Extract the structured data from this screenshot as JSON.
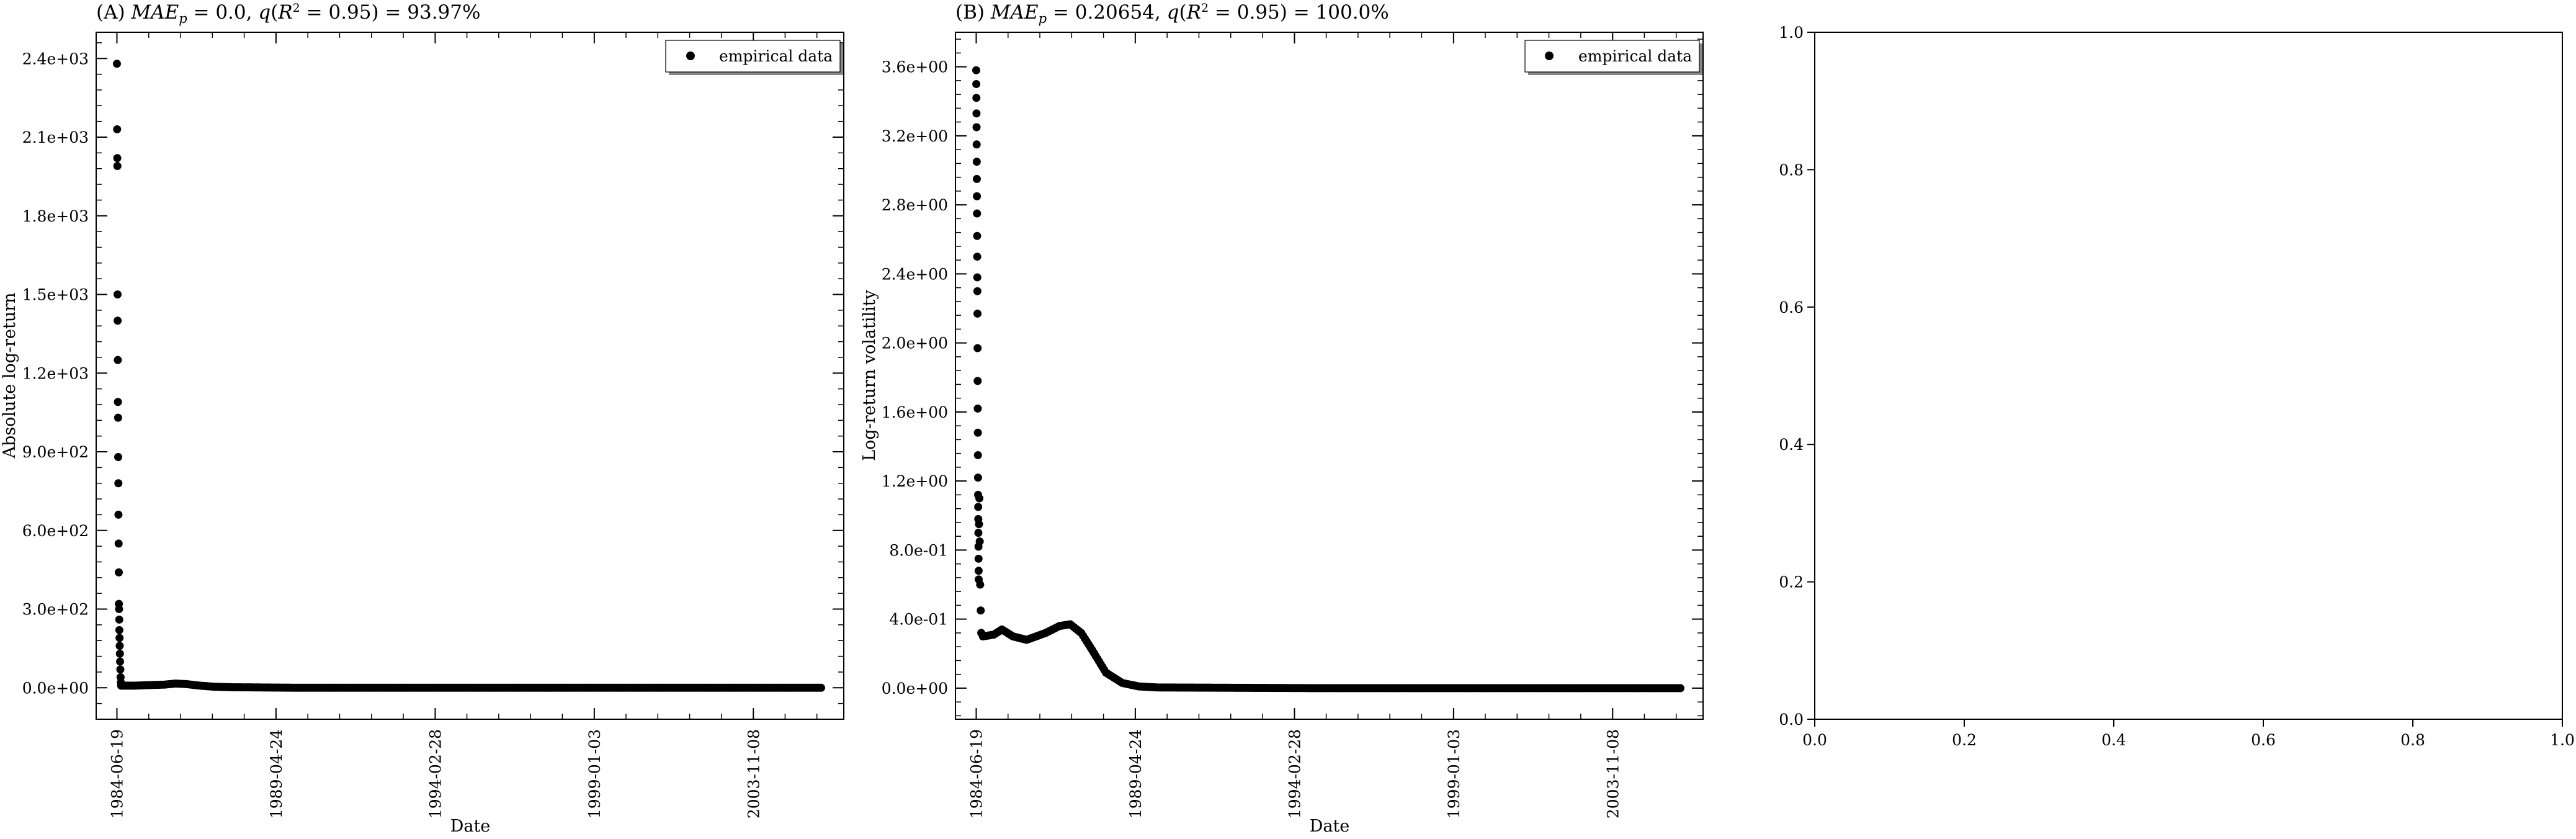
{
  "chart_data": [
    {
      "panel": "A",
      "type": "scatter",
      "title": "(A) MAE_p = 0.0, q(R^2 = 0.95) = 93.97%",
      "title_parts": {
        "prefix": "(A) ",
        "mae_label": "MAE",
        "mae_sub": "p",
        "mae_value": " = 0.0, ",
        "q_label": "q",
        "q_value_pre": "(",
        "r_label": "R",
        "r_sup": "2",
        "q_value_post": " = 0.95) = 93.97%"
      },
      "xlabel": "Date",
      "ylabel": "Absolute log-return",
      "x_tick_labels": [
        "1984-06-19",
        "1989-04-24",
        "1994-02-28",
        "1999-01-03",
        "2003-11-08"
      ],
      "y_tick_labels": [
        "0.0e+00",
        "3.0e+02",
        "6.0e+02",
        "9.0e+02",
        "1.2e+03",
        "1.5e+03",
        "1.8e+03",
        "2.1e+03",
        "2.4e+03"
      ],
      "y_ticks": [
        0,
        300,
        600,
        900,
        1200,
        1500,
        1800,
        2100,
        2400
      ],
      "ylim": [
        -120,
        2500
      ],
      "xlim": [
        "1983-11-01",
        "2006-08-10"
      ],
      "legend": {
        "label": "empirical data",
        "position": "top-right"
      },
      "series": [
        {
          "name": "empirical data",
          "early_points": [
            {
              "x": "1984-06-19",
              "y": 2380
            },
            {
              "x": "1984-06-21",
              "y": 2130
            },
            {
              "x": "1984-06-23",
              "y": 2020
            },
            {
              "x": "1984-06-24",
              "y": 1990
            },
            {
              "x": "1984-06-26",
              "y": 1500
            },
            {
              "x": "1984-06-27",
              "y": 1400
            },
            {
              "x": "1984-06-29",
              "y": 1250
            },
            {
              "x": "1984-06-30",
              "y": 1090
            },
            {
              "x": "1984-07-02",
              "y": 1030
            },
            {
              "x": "1984-07-03",
              "y": 880
            },
            {
              "x": "1984-07-05",
              "y": 780
            },
            {
              "x": "1984-07-06",
              "y": 660
            },
            {
              "x": "1984-07-08",
              "y": 550
            },
            {
              "x": "1984-07-10",
              "y": 440
            },
            {
              "x": "1984-07-11",
              "y": 320
            },
            {
              "x": "1984-07-13",
              "y": 300
            },
            {
              "x": "1984-07-15",
              "y": 260
            },
            {
              "x": "1984-07-16",
              "y": 220
            },
            {
              "x": "1984-07-18",
              "y": 190
            },
            {
              "x": "1984-07-20",
              "y": 160
            },
            {
              "x": "1984-07-22",
              "y": 130
            },
            {
              "x": "1984-07-24",
              "y": 100
            },
            {
              "x": "1984-07-27",
              "y": 70
            },
            {
              "x": "1984-07-30",
              "y": 40
            },
            {
              "x": "1984-08-02",
              "y": 20
            }
          ],
          "curve_points": [
            {
              "x": "1984-08-05",
              "y": 8
            },
            {
              "x": "1985-01-01",
              "y": 8
            },
            {
              "x": "1985-06-01",
              "y": 10
            },
            {
              "x": "1985-12-01",
              "y": 12
            },
            {
              "x": "1986-04-01",
              "y": 16
            },
            {
              "x": "1986-08-01",
              "y": 14
            },
            {
              "x": "1987-01-01",
              "y": 8
            },
            {
              "x": "1987-06-01",
              "y": 4
            },
            {
              "x": "1988-01-01",
              "y": 2
            },
            {
              "x": "1990-01-01",
              "y": 0
            },
            {
              "x": "1995-01-01",
              "y": 0
            },
            {
              "x": "2000-01-01",
              "y": 0
            },
            {
              "x": "2005-12-01",
              "y": 0
            }
          ]
        }
      ]
    },
    {
      "panel": "B",
      "type": "scatter",
      "title": "(B) MAE_p = 0.20654, q(R^2 = 0.95) = 100.0%",
      "title_parts": {
        "prefix": "(B) ",
        "mae_label": "MAE",
        "mae_sub": "p",
        "mae_value": " = 0.20654, ",
        "q_label": "q",
        "q_value_pre": "(",
        "r_label": "R",
        "r_sup": "2",
        "q_value_post": " = 0.95) = 100.0%"
      },
      "xlabel": "Date",
      "ylabel": "Log-return volatility",
      "x_tick_labels": [
        "1984-06-19",
        "1989-04-24",
        "1994-02-28",
        "1999-01-03",
        "2003-11-08"
      ],
      "y_tick_labels": [
        "0.0e+00",
        "4.0e-01",
        "8.0e-01",
        "1.2e+00",
        "1.6e+00",
        "2.0e+00",
        "2.4e+00",
        "2.8e+00",
        "3.2e+00",
        "3.6e+00"
      ],
      "y_ticks": [
        0,
        0.4,
        0.8,
        1.2,
        1.6,
        2.0,
        2.4,
        2.8,
        3.2,
        3.6
      ],
      "ylim": [
        -0.18,
        3.8
      ],
      "xlim": [
        "1983-11-01",
        "2006-08-10"
      ],
      "legend": {
        "label": "empirical data",
        "position": "top-right"
      },
      "series": [
        {
          "name": "empirical data",
          "early_points": [
            {
              "x": "1984-06-19",
              "y": 3.58
            },
            {
              "x": "1984-06-20",
              "y": 3.5
            },
            {
              "x": "1984-06-21",
              "y": 3.42
            },
            {
              "x": "1984-06-22",
              "y": 3.33
            },
            {
              "x": "1984-06-23",
              "y": 3.25
            },
            {
              "x": "1984-06-24",
              "y": 3.15
            },
            {
              "x": "1984-06-25",
              "y": 3.05
            },
            {
              "x": "1984-06-26",
              "y": 2.95
            },
            {
              "x": "1984-06-27",
              "y": 2.85
            },
            {
              "x": "1984-06-28",
              "y": 2.75
            },
            {
              "x": "1984-06-29",
              "y": 2.62
            },
            {
              "x": "1984-06-30",
              "y": 2.5
            },
            {
              "x": "1984-07-01",
              "y": 2.38
            },
            {
              "x": "1984-07-02",
              "y": 2.3
            },
            {
              "x": "1984-07-03",
              "y": 2.17
            },
            {
              "x": "1984-07-04",
              "y": 1.97
            },
            {
              "x": "1984-07-05",
              "y": 1.78
            },
            {
              "x": "1984-07-06",
              "y": 1.62
            },
            {
              "x": "1984-07-07",
              "y": 1.48
            },
            {
              "x": "1984-07-08",
              "y": 1.35
            },
            {
              "x": "1984-07-09",
              "y": 1.22
            },
            {
              "x": "1984-07-10",
              "y": 1.12
            },
            {
              "x": "1984-07-11",
              "y": 1.05
            },
            {
              "x": "1984-07-12",
              "y": 0.98
            },
            {
              "x": "1984-07-13",
              "y": 0.9
            },
            {
              "x": "1984-07-14",
              "y": 0.82
            },
            {
              "x": "1984-07-15",
              "y": 0.75
            },
            {
              "x": "1984-07-16",
              "y": 0.68
            },
            {
              "x": "1984-07-17",
              "y": 0.63
            },
            {
              "x": "1984-07-20",
              "y": 0.95
            },
            {
              "x": "1984-07-24",
              "y": 1.1
            },
            {
              "x": "1984-07-28",
              "y": 0.85
            },
            {
              "x": "1984-08-02",
              "y": 0.6
            },
            {
              "x": "1984-08-08",
              "y": 0.45
            },
            {
              "x": "1984-08-14",
              "y": 0.32
            }
          ],
          "curve_points": [
            {
              "x": "1984-09-01",
              "y": 0.3
            },
            {
              "x": "1985-01-01",
              "y": 0.31
            },
            {
              "x": "1985-04-01",
              "y": 0.34
            },
            {
              "x": "1985-08-01",
              "y": 0.3
            },
            {
              "x": "1986-01-01",
              "y": 0.28
            },
            {
              "x": "1986-08-01",
              "y": 0.32
            },
            {
              "x": "1987-01-01",
              "y": 0.36
            },
            {
              "x": "1987-05-01",
              "y": 0.37
            },
            {
              "x": "1987-09-01",
              "y": 0.32
            },
            {
              "x": "1988-01-01",
              "y": 0.22
            },
            {
              "x": "1988-06-01",
              "y": 0.09
            },
            {
              "x": "1988-12-01",
              "y": 0.03
            },
            {
              "x": "1989-06-01",
              "y": 0.01
            },
            {
              "x": "1990-01-01",
              "y": 0.004
            },
            {
              "x": "1995-01-01",
              "y": 0
            },
            {
              "x": "2000-01-01",
              "y": 0
            },
            {
              "x": "2005-12-01",
              "y": 0
            }
          ]
        }
      ]
    },
    {
      "panel": "C",
      "type": "scatter",
      "title": "",
      "xlabel": "",
      "ylabel": "",
      "x_tick_labels": [
        "0.0",
        "0.2",
        "0.4",
        "0.6",
        "0.8",
        "1.0"
      ],
      "y_tick_labels": [
        "0.0",
        "0.2",
        "0.4",
        "0.6",
        "0.8",
        "1.0"
      ],
      "xlim": [
        0,
        1
      ],
      "ylim": [
        0,
        1
      ],
      "series": []
    }
  ]
}
